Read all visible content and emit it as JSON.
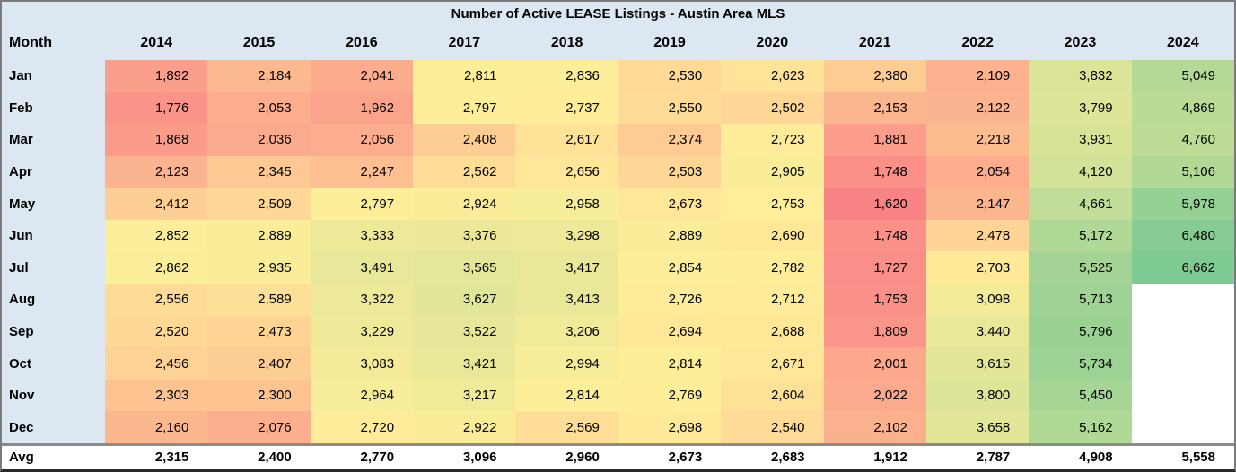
{
  "chart_data": {
    "type": "heatmap",
    "title": "Number of Active LEASE Listings - Austin Area MLS",
    "row_header": "Month",
    "avg_label": "Avg",
    "columns": [
      "2014",
      "2015",
      "2016",
      "2017",
      "2018",
      "2019",
      "2020",
      "2021",
      "2022",
      "2023",
      "2024"
    ],
    "series": [
      {
        "name": "Jan",
        "values": [
          1892,
          2184,
          2041,
          2811,
          2836,
          2530,
          2623,
          2380,
          2109,
          3832,
          5049
        ]
      },
      {
        "name": "Feb",
        "values": [
          1776,
          2053,
          1962,
          2797,
          2737,
          2550,
          2502,
          2153,
          2122,
          3799,
          4869
        ]
      },
      {
        "name": "Mar",
        "values": [
          1868,
          2036,
          2056,
          2408,
          2617,
          2374,
          2723,
          1881,
          2218,
          3931,
          4760
        ]
      },
      {
        "name": "Apr",
        "values": [
          2123,
          2345,
          2247,
          2562,
          2656,
          2503,
          2905,
          1748,
          2054,
          4120,
          5106
        ]
      },
      {
        "name": "May",
        "values": [
          2412,
          2509,
          2797,
          2924,
          2958,
          2673,
          2753,
          1620,
          2147,
          4661,
          5978
        ]
      },
      {
        "name": "Jun",
        "values": [
          2852,
          2889,
          3333,
          3376,
          3298,
          2889,
          2690,
          1748,
          2478,
          5172,
          6480
        ]
      },
      {
        "name": "Jul",
        "values": [
          2862,
          2935,
          3491,
          3565,
          3417,
          2854,
          2782,
          1727,
          2703,
          5525,
          6662
        ]
      },
      {
        "name": "Aug",
        "values": [
          2556,
          2589,
          3322,
          3627,
          3413,
          2726,
          2712,
          1753,
          3098,
          5713,
          null
        ]
      },
      {
        "name": "Sep",
        "values": [
          2520,
          2473,
          3229,
          3522,
          3206,
          2694,
          2688,
          1809,
          3440,
          5796,
          null
        ]
      },
      {
        "name": "Oct",
        "values": [
          2456,
          2407,
          3083,
          3421,
          2994,
          2814,
          2671,
          2001,
          3615,
          5734,
          null
        ]
      },
      {
        "name": "Nov",
        "values": [
          2303,
          2300,
          2964,
          3217,
          2814,
          2769,
          2604,
          2022,
          3800,
          5450,
          null
        ]
      },
      {
        "name": "Dec",
        "values": [
          2160,
          2076,
          2720,
          2922,
          2569,
          2698,
          2540,
          2102,
          3658,
          5162,
          null
        ]
      }
    ],
    "averages": [
      2315,
      2400,
      2770,
      3096,
      2960,
      2673,
      2683,
      1912,
      2787,
      4908,
      5558
    ],
    "color_scale": {
      "min_value": 1620,
      "mid_value": 2750,
      "max_value": 6662,
      "min_color": "#F8696B",
      "mid_color": "#FFEB84",
      "max_color": "#63BE7B",
      "white_blend": 0.18
    },
    "layout": {
      "legend": "none",
      "grid": "off",
      "header_bg": "#dce7f2",
      "frame_border": "#7b7b7b",
      "avg_separator": "#8b8b8b",
      "text_color": "#000000"
    }
  }
}
